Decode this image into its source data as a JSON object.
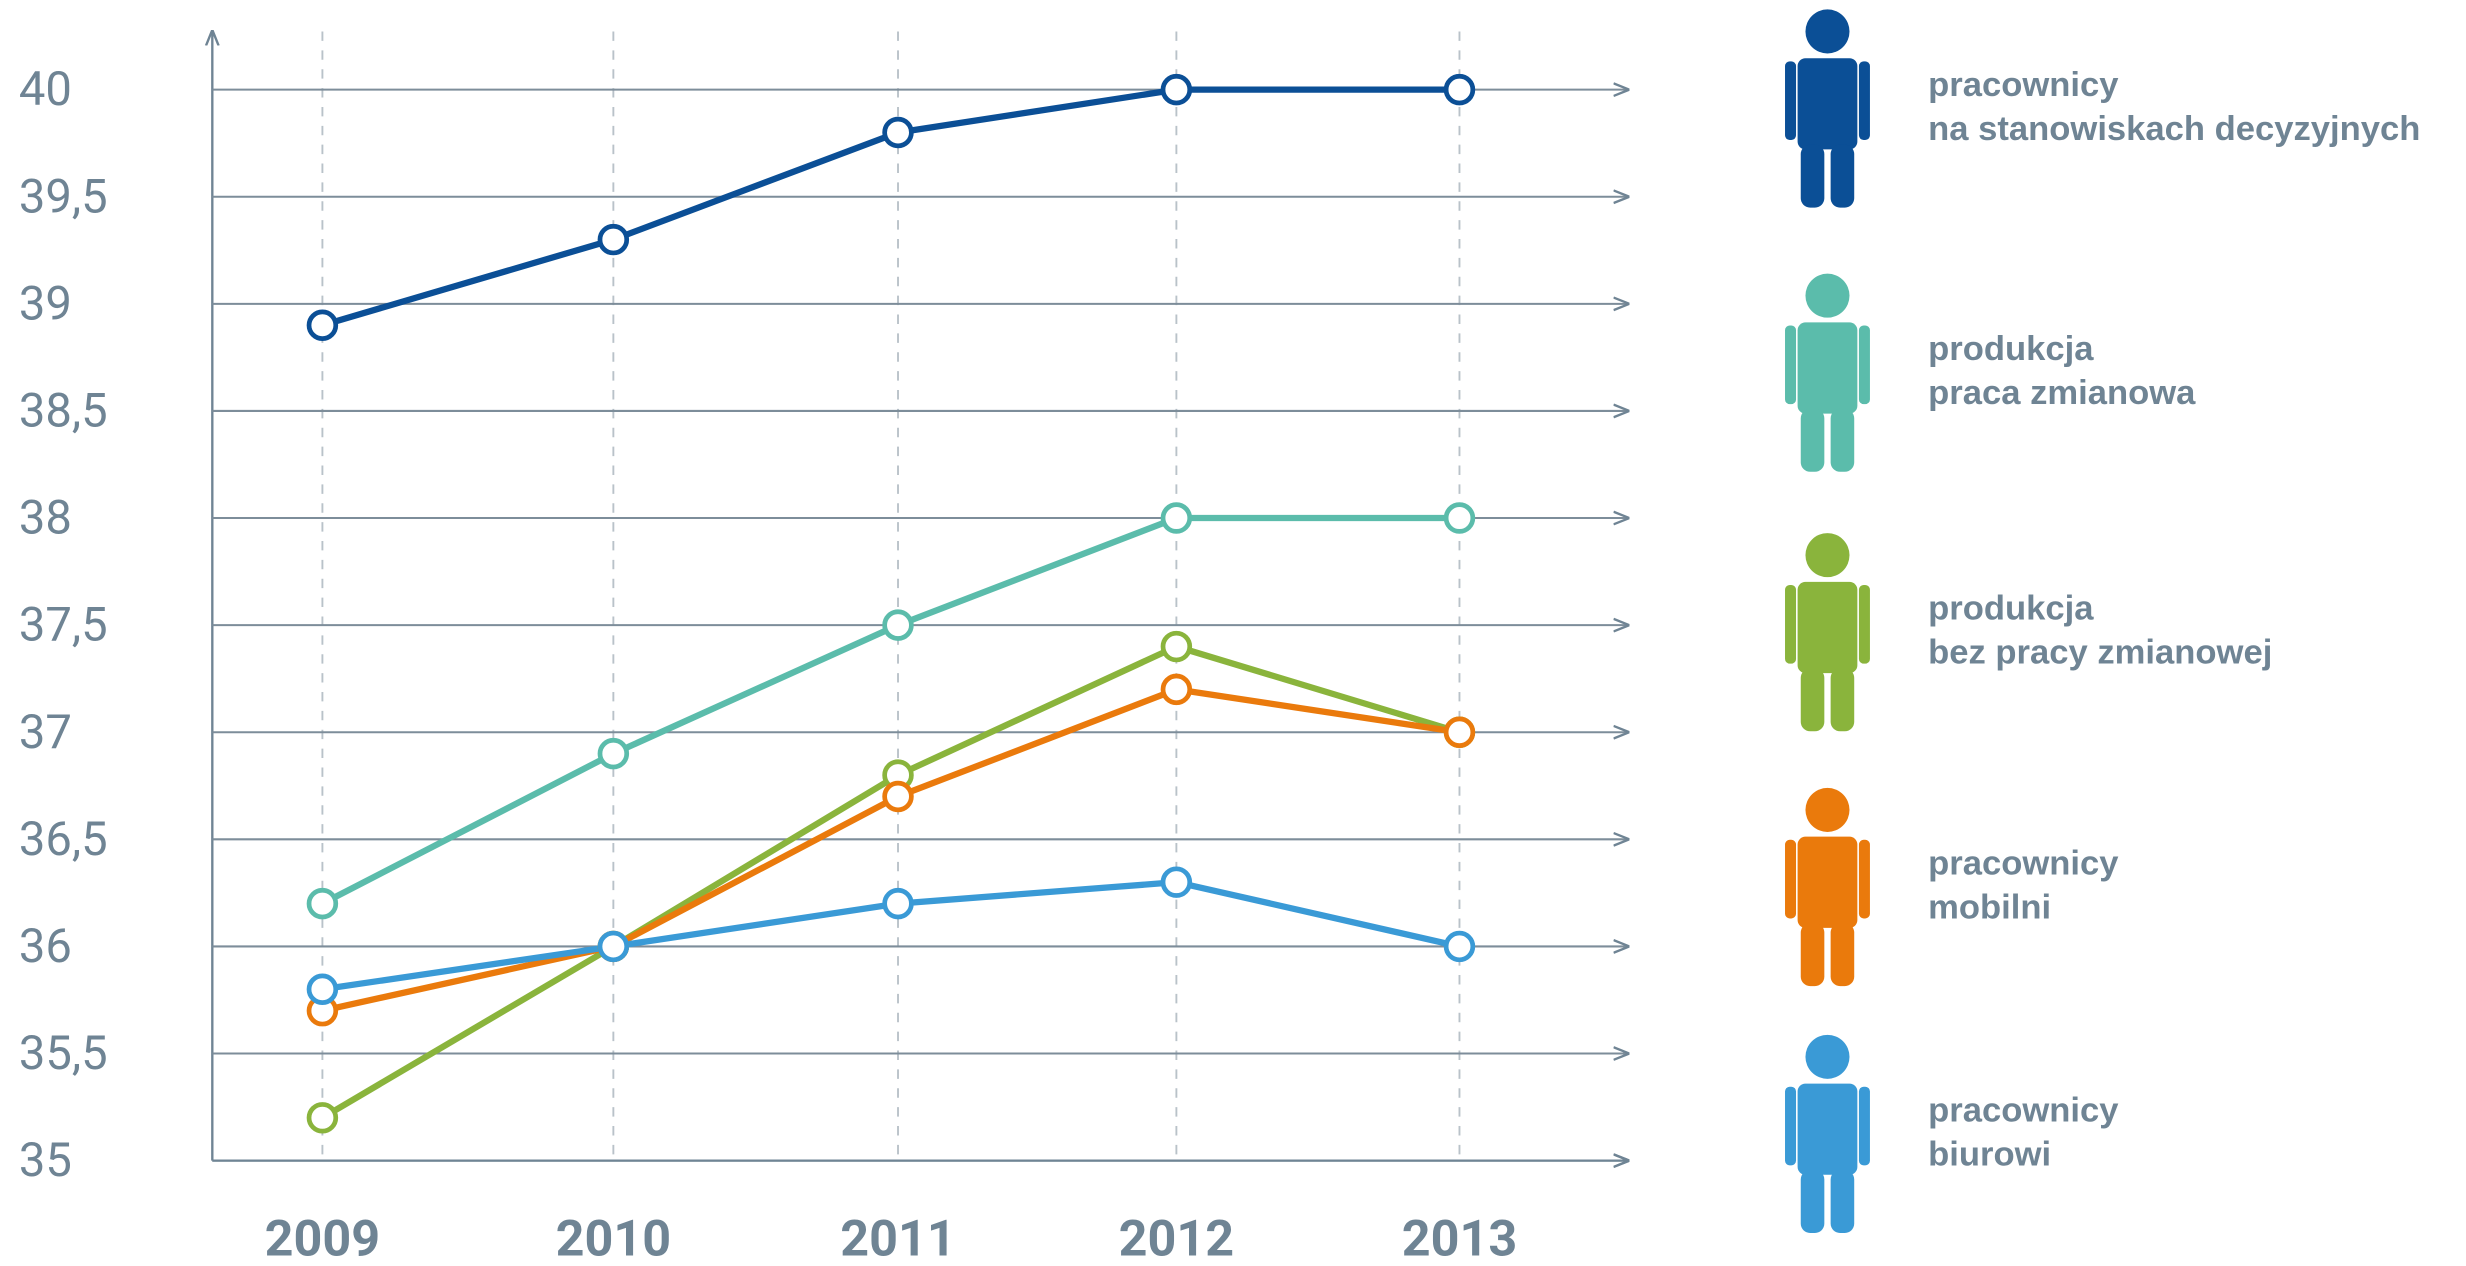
{
  "chart_data": {
    "type": "line",
    "categories": [
      "2009",
      "2010",
      "2011",
      "2012",
      "2013"
    ],
    "ylim": [
      35,
      40
    ],
    "yticks": [
      35,
      {
        "value": 35.5,
        "label": "35,5"
      },
      36,
      {
        "value": 36.5,
        "label": "36,5"
      },
      37,
      {
        "value": 37.5,
        "label": "37,5"
      },
      38,
      {
        "value": 38.5,
        "label": "38,5"
      },
      39,
      {
        "value": 39.5,
        "label": "39,5"
      },
      40
    ],
    "grid": true,
    "legend": "right",
    "series": [
      {
        "name": "pracownicy\nna stanowiskach decyzyjnych",
        "color": "#0b4f96",
        "values": [
          38.9,
          39.3,
          39.8,
          40,
          40
        ]
      },
      {
        "name": "produkcja\npraca zmianowa",
        "color": "#5bbcab",
        "values": [
          36.2,
          36.9,
          37.5,
          38,
          38
        ]
      },
      {
        "name": "produkcja\nbez pracy zmianowej",
        "color": "#8ab43c",
        "values": [
          35.2,
          36,
          36.8,
          37.4,
          37
        ]
      },
      {
        "name": "pracownicy\nmobilni",
        "color": "#ea7a0c",
        "values": [
          35.7,
          36,
          36.7,
          37.2,
          37
        ]
      },
      {
        "name": "pracownicy\nbiurowi",
        "color": "#3a9ad6",
        "values": [
          35.8,
          36,
          36.2,
          36.3,
          36
        ]
      }
    ]
  }
}
